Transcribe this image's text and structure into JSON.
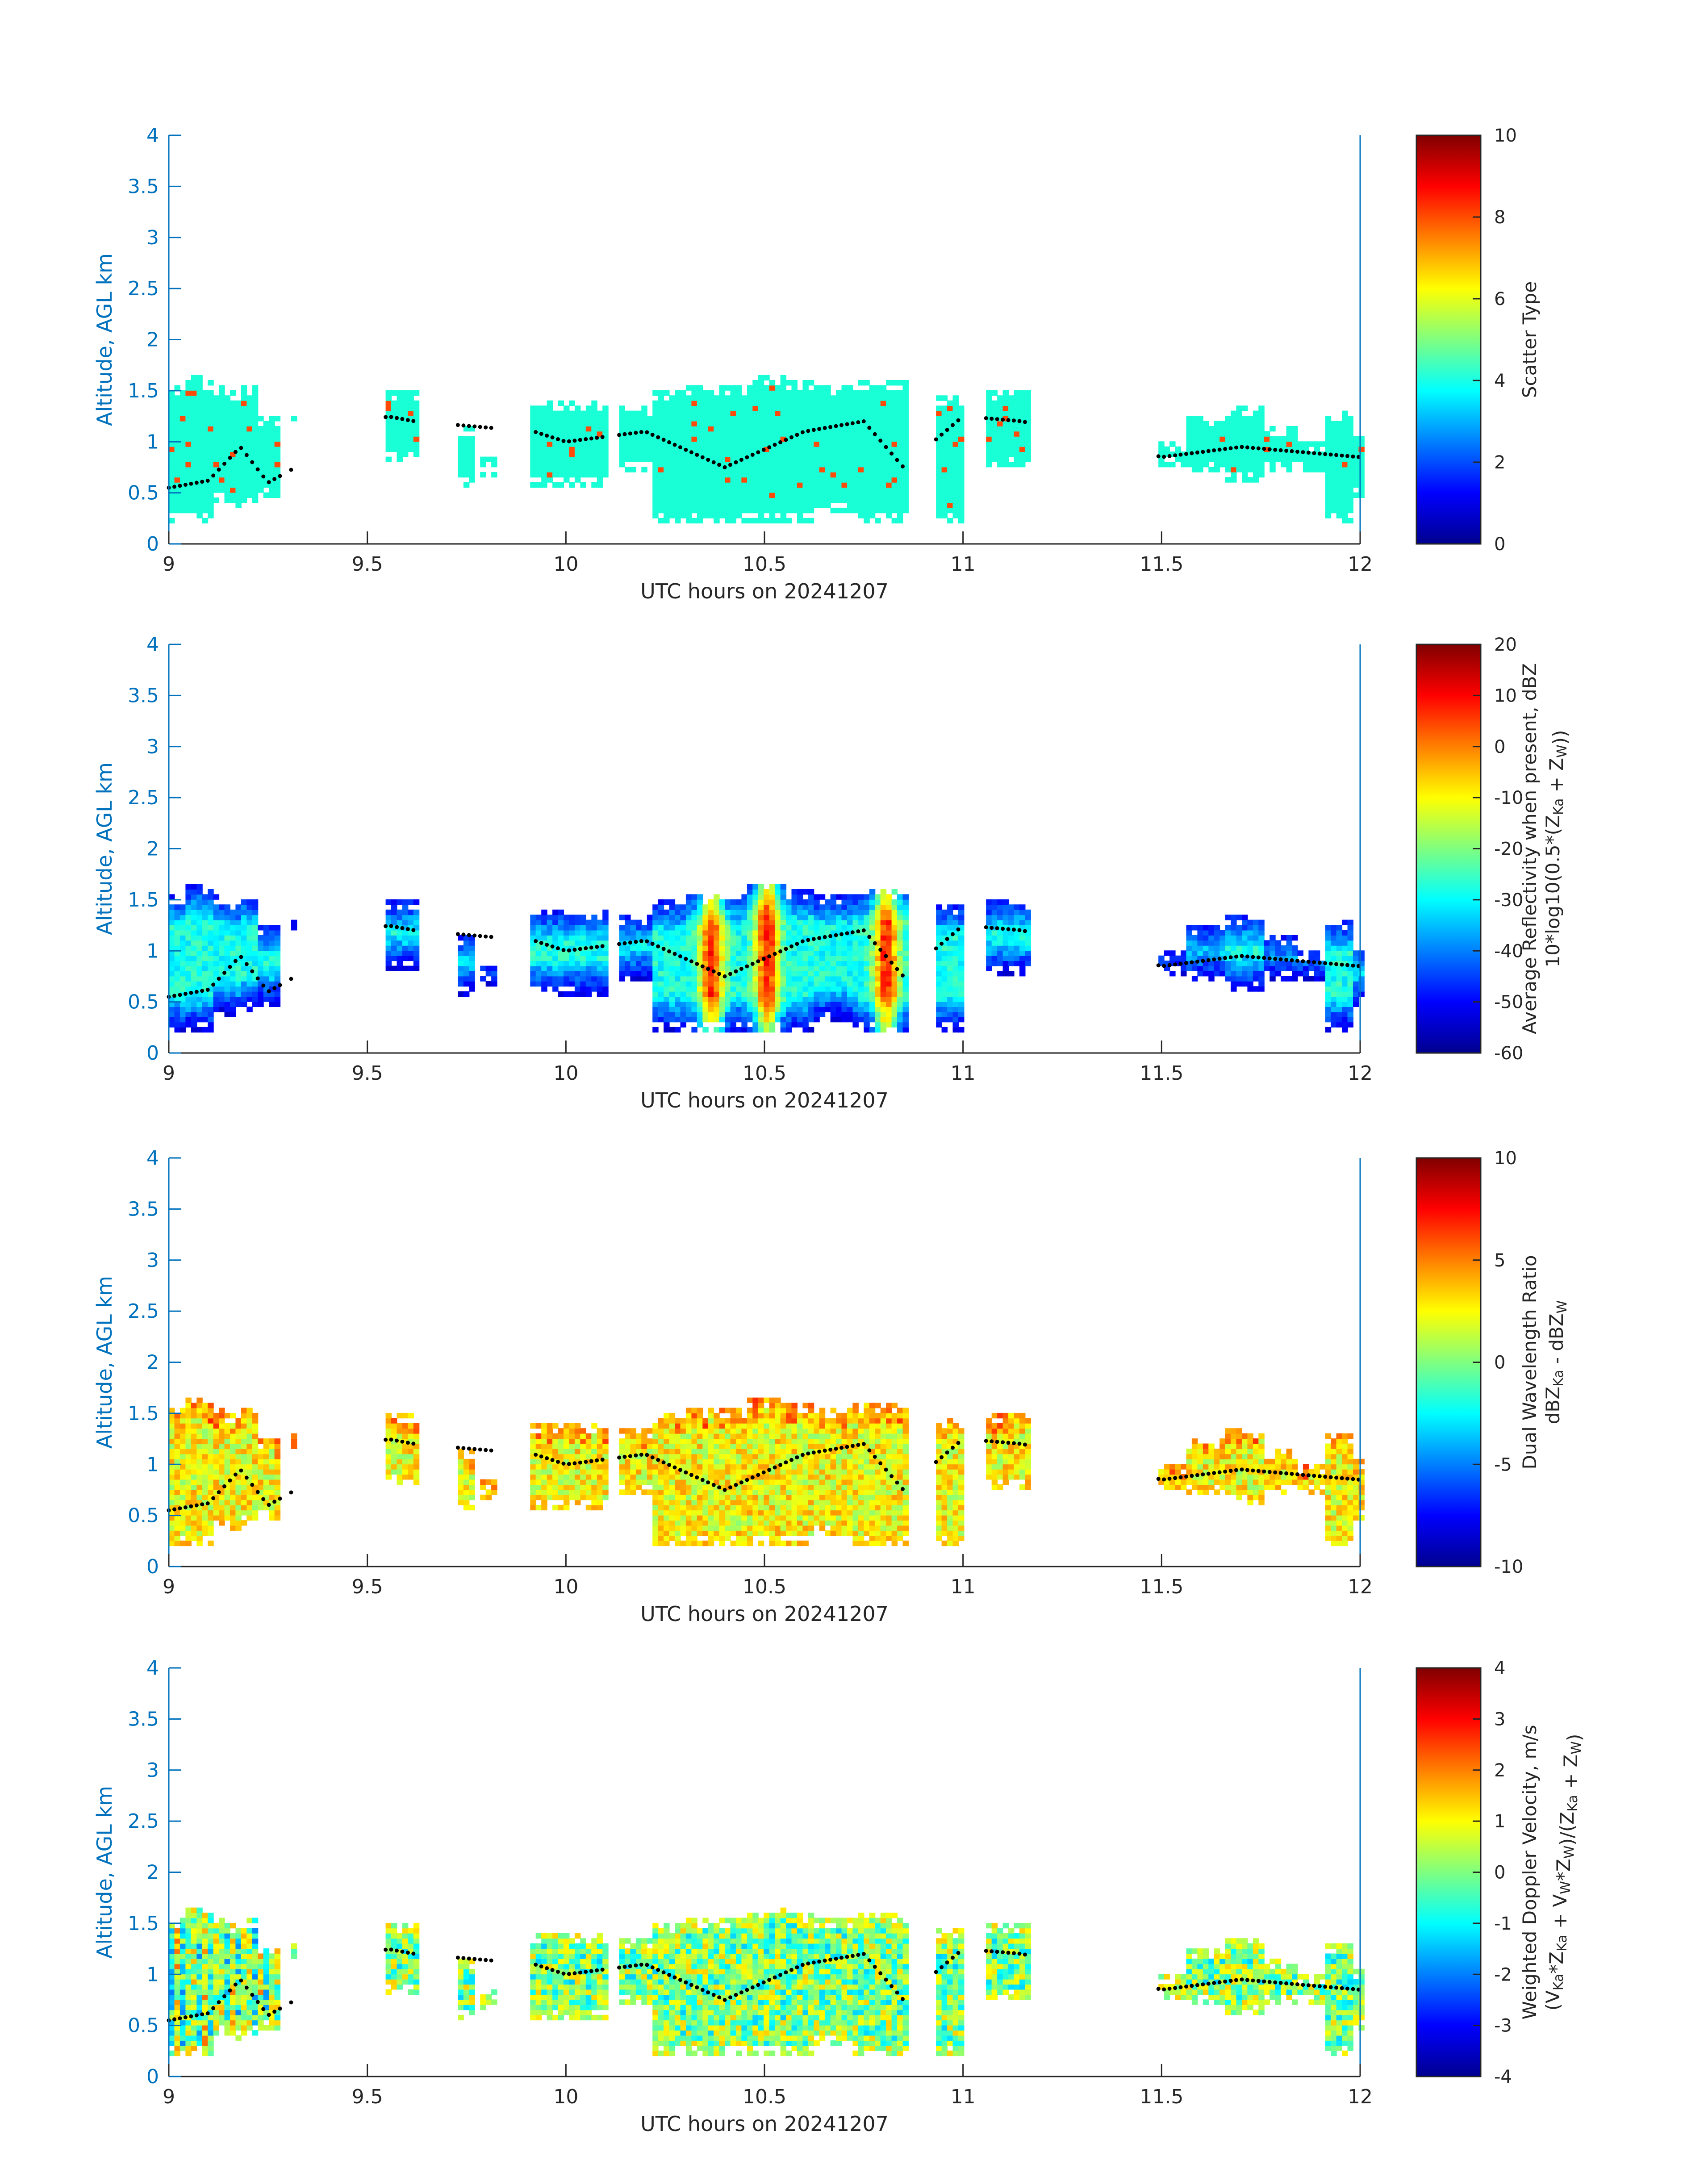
{
  "chart_data": [
    {
      "type": "heatmap",
      "xlabel": "UTC hours on 20241207",
      "ylabel": "Altitude, AGL km",
      "xlim": [
        9,
        12
      ],
      "ylim": [
        0,
        4
      ],
      "xticks": [
        "9",
        "9.5",
        "10",
        "10.5",
        "11",
        "11.5",
        "12"
      ],
      "yticks": [
        "0",
        "0.5",
        "1",
        "1.5",
        "2",
        "2.5",
        "3",
        "3.5",
        "4"
      ],
      "colorbar": {
        "label": "Scatter Type",
        "sublabel": "",
        "range": [
          0,
          10
        ],
        "ticks": [
          "0",
          "2",
          "4",
          "6",
          "8",
          "10"
        ],
        "colormap": "jet"
      }
    },
    {
      "type": "heatmap",
      "xlabel": "UTC hours on 20241207",
      "ylabel": "Altitude, AGL km",
      "xlim": [
        9,
        12
      ],
      "ylim": [
        0,
        4
      ],
      "xticks": [
        "9",
        "9.5",
        "10",
        "10.5",
        "11",
        "11.5",
        "12"
      ],
      "yticks": [
        "0",
        "0.5",
        "1",
        "1.5",
        "2",
        "2.5",
        "3",
        "3.5",
        "4"
      ],
      "colorbar": {
        "label": "Average Reflectivity when present, dBZ",
        "sublabel": "10*log10(0.5*(Z_Ka + Z_W))",
        "range": [
          -60,
          20
        ],
        "ticks": [
          "-60",
          "-50",
          "-40",
          "-30",
          "-20",
          "-10",
          "0",
          "10",
          "20"
        ],
        "colormap": "jet"
      }
    },
    {
      "type": "heatmap",
      "xlabel": "UTC hours on 20241207",
      "ylabel": "Altitude, AGL km",
      "xlim": [
        9,
        12
      ],
      "ylim": [
        0,
        4
      ],
      "xticks": [
        "9",
        "9.5",
        "10",
        "10.5",
        "11",
        "11.5",
        "12"
      ],
      "yticks": [
        "0",
        "0.5",
        "1",
        "1.5",
        "2",
        "2.5",
        "3",
        "3.5",
        "4"
      ],
      "colorbar": {
        "label": "Dual Wavelength Ratio",
        "sublabel": "dBZ_Ka - dBZ_W",
        "range": [
          -10,
          10
        ],
        "ticks": [
          "-10",
          "-5",
          "0",
          "5",
          "10"
        ],
        "colormap": "jet"
      }
    },
    {
      "type": "heatmap",
      "xlabel": "UTC hours on 20241207",
      "ylabel": "Altitude, AGL km",
      "xlim": [
        9,
        12
      ],
      "ylim": [
        0,
        4
      ],
      "xticks": [
        "9",
        "9.5",
        "10",
        "10.5",
        "11",
        "11.5",
        "12"
      ],
      "yticks": [
        "0",
        "0.5",
        "1",
        "1.5",
        "2",
        "2.5",
        "3",
        "3.5",
        "4"
      ],
      "colorbar": {
        "label": "Weighted Doppler Velocity, m/s",
        "sublabel": "(V_Ka*Z_Ka + V_W*Z_W)/(Z_Ka + Z_W)",
        "range": [
          -4,
          4
        ],
        "ticks": [
          "-4",
          "-3",
          "-2",
          "-1",
          "0",
          "1",
          "2",
          "3",
          "4"
        ],
        "colormap": "jet"
      }
    }
  ]
}
